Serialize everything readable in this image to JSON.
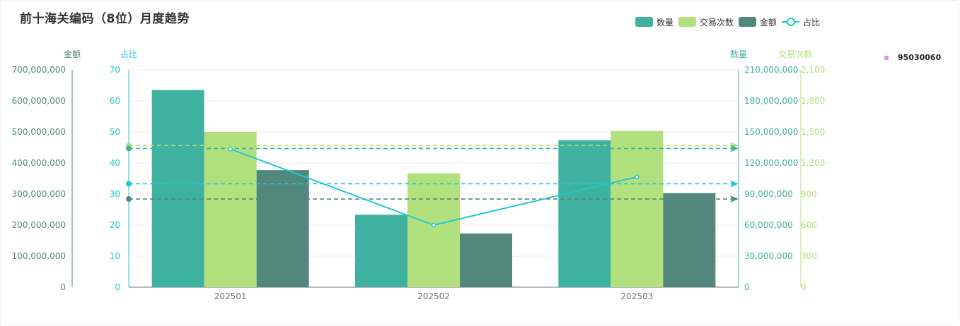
{
  "title": "前十海关编码（8位）月度趋势",
  "legend": [
    {
      "name": "数量",
      "color": "#3fb1a0",
      "shape": "rect"
    },
    {
      "name": "交易次数",
      "color": "#b2e07f",
      "shape": "rect"
    },
    {
      "name": "金额",
      "color": "#52877b",
      "shape": "rect"
    },
    {
      "name": "占比",
      "color": "#1fc9d0",
      "shape": "line"
    }
  ],
  "side_legend": {
    "label": "95030060",
    "color": "#cfa1d6"
  },
  "chart_data": {
    "type": "bar",
    "categories": [
      "202501",
      "202502",
      "202503"
    ],
    "series": [
      {
        "name": "数量",
        "axis": "数量",
        "color": "#3fb1a0",
        "values": [
          190500000,
          70000000,
          142000000
        ]
      },
      {
        "name": "交易次数",
        "axis": "交易次数",
        "color": "#b2e07f",
        "values": [
          1500,
          1100,
          1510
        ]
      },
      {
        "name": "金额",
        "axis": "金额",
        "color": "#52877b",
        "values": [
          377000000,
          173000000,
          303000000
        ]
      },
      {
        "name": "占比",
        "axis": "占比",
        "type": "line",
        "color": "#1fc9d0",
        "values": [
          44.5,
          20,
          35.5
        ]
      }
    ],
    "axes": {
      "金额": {
        "label": "金额",
        "ticks": [
          "0",
          "100,000,000",
          "200,000,000",
          "300,000,000",
          "400,000,000",
          "500,000,000",
          "600,000,000",
          "700,000,000"
        ],
        "max": 700000000,
        "color": "#52877b"
      },
      "占比": {
        "label": "占比",
        "ticks": [
          "0",
          "10",
          "20",
          "30",
          "40",
          "50",
          "60",
          "70"
        ],
        "max": 70,
        "color": "#1fc9d0"
      },
      "数量": {
        "label": "数量",
        "ticks": [
          "0",
          "30,000,000",
          "60,000,000",
          "90,000,000",
          "120,000,000",
          "150,000,000",
          "180,000,000",
          "210,000,000"
        ],
        "max": 210000000,
        "color": "#3fb1a0"
      },
      "交易次数": {
        "label": "交易次数",
        "ticks": [
          "0",
          "300",
          "600",
          "900",
          "1,200",
          "1,500",
          "1,800",
          "2,100"
        ],
        "max": 2100,
        "color": "#b2e07f"
      }
    },
    "mark_lines": [
      {
        "series": "交易次数",
        "value": 1370,
        "color": "#b2e07f"
      },
      {
        "series": "数量",
        "value": 134000000,
        "color": "#3fb1a0"
      },
      {
        "series": "占比",
        "value": 33.3,
        "color": "#1fc9d0"
      },
      {
        "series": "金额",
        "value": 284000000,
        "color": "#52877b"
      }
    ],
    "grid": true,
    "legend_position": "top-right"
  }
}
